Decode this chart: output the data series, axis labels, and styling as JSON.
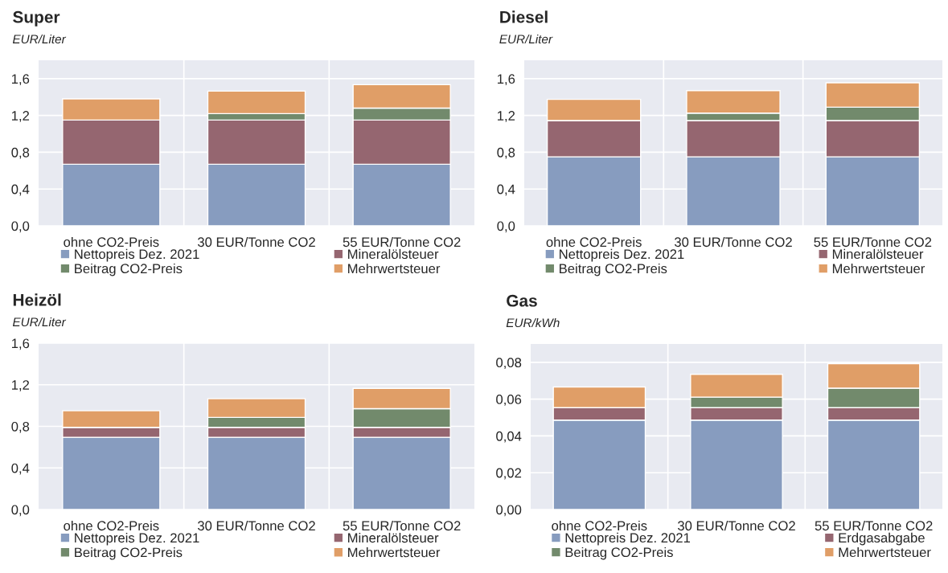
{
  "chart_data": [
    {
      "type": "bar",
      "title": "Super",
      "ylabel": "EUR/Liter",
      "stacked": true,
      "categories": [
        "ohne CO2-Preis",
        "30 EUR/Tonne CO2",
        "55 EUR/Tonne CO2"
      ],
      "ylim": [
        0,
        1.8
      ],
      "yticks": [
        {
          "value": 0,
          "label": "0,0"
        },
        {
          "value": 0.4,
          "label": "0,4"
        },
        {
          "value": 0.8,
          "label": "0,8"
        },
        {
          "value": 1.2,
          "label": "1,2"
        },
        {
          "value": 1.6,
          "label": "1,6"
        }
      ],
      "grid": true,
      "legend": "bottom",
      "series": [
        {
          "name": "Nettopreis Dez. 2021",
          "color": "#879cbf",
          "values": [
            0.67,
            0.67,
            0.67
          ]
        },
        {
          "name": "Mineralölsteuer",
          "color": "#956670",
          "values": [
            0.48,
            0.48,
            0.48
          ]
        },
        {
          "name": "Beitrag CO2-Preis",
          "color": "#728a6c",
          "values": [
            0,
            0.07,
            0.13
          ]
        },
        {
          "name": "Mehrwertsteuer",
          "color": "#e09e67",
          "values": [
            0.23,
            0.245,
            0.255
          ]
        }
      ]
    },
    {
      "type": "bar",
      "title": "Diesel",
      "ylabel": "EUR/Liter",
      "stacked": true,
      "categories": [
        "ohne CO2-Preis",
        "30 EUR/Tonne CO2",
        "55 EUR/Tonne CO2"
      ],
      "ylim": [
        0,
        1.8
      ],
      "yticks": [
        {
          "value": 0,
          "label": "0,0"
        },
        {
          "value": 0.4,
          "label": "0,4"
        },
        {
          "value": 0.8,
          "label": "0,8"
        },
        {
          "value": 1.2,
          "label": "1,2"
        },
        {
          "value": 1.6,
          "label": "1,6"
        }
      ],
      "grid": true,
      "legend": "bottom",
      "series": [
        {
          "name": "Nettopreis Dez. 2021",
          "color": "#879cbf",
          "values": [
            0.75,
            0.75,
            0.75
          ]
        },
        {
          "name": "Mineralölsteuer",
          "color": "#956670",
          "values": [
            0.395,
            0.395,
            0.395
          ]
        },
        {
          "name": "Beitrag CO2-Preis",
          "color": "#728a6c",
          "values": [
            0,
            0.08,
            0.145
          ]
        },
        {
          "name": "Mehrwertsteuer",
          "color": "#e09e67",
          "values": [
            0.23,
            0.245,
            0.265
          ]
        }
      ]
    },
    {
      "type": "bar",
      "title": "Heizöl",
      "ylabel": "EUR/Liter",
      "stacked": true,
      "categories": [
        "ohne CO2-Preis",
        "30 EUR/Tonne CO2",
        "55 EUR/Tonne CO2"
      ],
      "ylim": [
        0,
        1.6
      ],
      "yticks": [
        {
          "value": 0,
          "label": "0,0"
        },
        {
          "value": 0.4,
          "label": "0,4"
        },
        {
          "value": 0.8,
          "label": "0,8"
        },
        {
          "value": 1.2,
          "label": "1,2"
        },
        {
          "value": 1.6,
          "label": "1,6"
        }
      ],
      "grid": true,
      "legend": "bottom",
      "series": [
        {
          "name": "Nettopreis Dez. 2021",
          "color": "#879cbf",
          "values": [
            0.695,
            0.695,
            0.695
          ]
        },
        {
          "name": "Mineralölsteuer",
          "color": "#956670",
          "values": [
            0.095,
            0.095,
            0.095
          ]
        },
        {
          "name": "Beitrag CO2-Preis",
          "color": "#728a6c",
          "values": [
            0,
            0.096,
            0.18
          ]
        },
        {
          "name": "Mehrwertsteuer",
          "color": "#e09e67",
          "values": [
            0.16,
            0.18,
            0.195
          ]
        }
      ]
    },
    {
      "type": "bar",
      "title": "Gas",
      "ylabel": "EUR/kWh",
      "stacked": true,
      "categories": [
        "ohne CO2-Preis",
        "30 EUR/Tonne CO2",
        "55 EUR/Tonne CO2"
      ],
      "ylim": [
        0,
        0.09
      ],
      "yticks": [
        {
          "value": 0,
          "label": "0,00"
        },
        {
          "value": 0.02,
          "label": "0,02"
        },
        {
          "value": 0.04,
          "label": "0,04"
        },
        {
          "value": 0.06,
          "label": "0,06"
        },
        {
          "value": 0.08,
          "label": "0,08"
        }
      ],
      "grid": true,
      "legend": "bottom",
      "series": [
        {
          "name": "Nettopreis Dez. 2021",
          "color": "#879cbf",
          "values": [
            0.0486,
            0.0486,
            0.0486
          ]
        },
        {
          "name": "Erdgasabgabe",
          "color": "#956670",
          "values": [
            0.0068,
            0.0068,
            0.0068
          ]
        },
        {
          "name": "Beitrag CO2-Preis",
          "color": "#728a6c",
          "values": [
            0,
            0.0057,
            0.0106
          ]
        },
        {
          "name": "Mehrwertsteuer",
          "color": "#e09e67",
          "values": [
            0.0112,
            0.0124,
            0.0133
          ]
        }
      ]
    }
  ]
}
